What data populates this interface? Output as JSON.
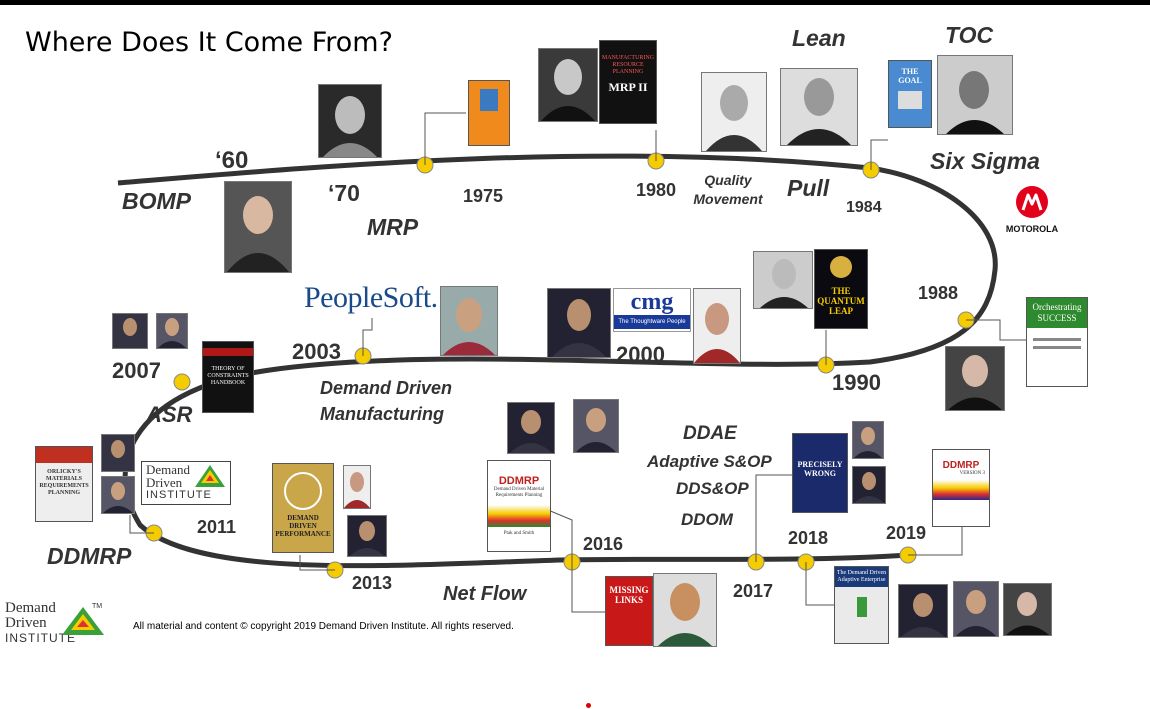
{
  "title": "Where Does It Come From?",
  "eras": {
    "sixties": "‘60",
    "seventies": "‘70",
    "bomp": "BOMP",
    "mrp": "MRP",
    "lean": "Lean",
    "toc": "TOC",
    "six_sigma": "Six Sigma",
    "quality": "Quality Movement",
    "pull": "Pull",
    "asr": "ASR",
    "ddm": "Demand Driven Manufacturing",
    "ddmrp": "DDMRP",
    "net_flow": "Net Flow",
    "ddae": "DDAE",
    "adaptive": "Adaptive S&OP",
    "ddsop": "DDS&OP",
    "ddom": "DDOM"
  },
  "years": {
    "y1975": "1975",
    "y1980": "1980",
    "y1984": "1984",
    "y1988": "1988",
    "y1990": "1990",
    "y2000": "2000",
    "y2003": "2003",
    "y2007": "2007",
    "y2011": "2011",
    "y2013": "2013",
    "y2016": "2016",
    "y2017": "2017",
    "y2018": "2018",
    "y2019": "2019"
  },
  "logos": {
    "peoplesoft": "PeopleSoft.",
    "cmg": "cmg",
    "cmg_sub": "The Thoughtware People",
    "motorola": "MOTOROLA",
    "ddi_top": "Demand",
    "ddi_mid": "Driven",
    "ddi_bot": "INSTITUTE",
    "ddi_tm": "TM"
  },
  "books": {
    "mrp2": "MRP II",
    "mrp2_top": "MANUFACTURING RESOURCE PLANNING",
    "goal": "THE GOAL",
    "toc_hb": "THEORY OF CONSTRAINTS HANDBOOK",
    "orlicky": "ORLICKY'S MATERIALS REQUIREMENTS PLANNING",
    "ddp": "DEMAND DRIVEN PERFORMANCE",
    "ddmrp_book": "DDMRP",
    "ddmrp_sub": "Demand Driven Material Requirements Planning",
    "ddmrp_auth": "Ptak and Smith",
    "missing": "MISSING LINKS",
    "precisely": "PRECISELY WRONG",
    "adaptive_ent": "The Demand Driven Adaptive Enterprise",
    "ddmrp3": "DDMRP",
    "ddmrp3_ver": "VERSION 3",
    "orchestrating": "Orchestrating SUCCESS",
    "leap": "THE QUANTUM LEAP"
  },
  "copyright": "All material and content © copyright 2019 Demand Driven Institute.  All rights reserved.",
  "colors": {
    "track": "#333333",
    "node": "#f5cc00",
    "label": "#333333",
    "motorola": "#e2001a"
  }
}
